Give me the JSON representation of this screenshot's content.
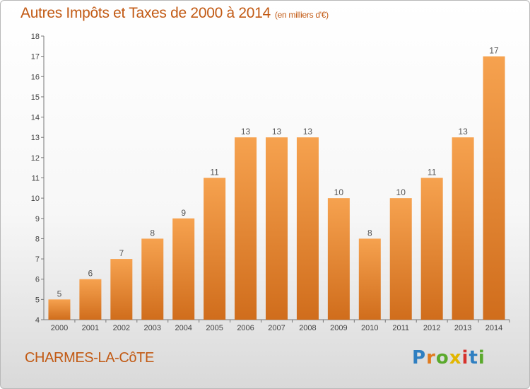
{
  "title": "Autres Impôts et Taxes de 2000 à 2014",
  "title_unit": "(en milliers d'€)",
  "place": "CHARMES-LA-CôTE",
  "logo": {
    "text": "Proxiti",
    "letters": [
      {
        "ch": "P",
        "color": "#2f7fc1"
      },
      {
        "ch": "r",
        "color": "#e07b1f"
      },
      {
        "ch": "o",
        "color": "#5aa92c"
      },
      {
        "ch": "x",
        "color": "#e2b600"
      },
      {
        "ch": "i",
        "color": "#d6312c"
      },
      {
        "ch": "t",
        "color": "#2f7fc1"
      },
      {
        "ch": "i",
        "color": "#5aa92c"
      }
    ]
  },
  "chart_data": {
    "type": "bar",
    "title": "Autres Impôts et Taxes de 2000 à 2014",
    "categories": [
      "2000",
      "2001",
      "2002",
      "2003",
      "2004",
      "2005",
      "2006",
      "2007",
      "2008",
      "2009",
      "2010",
      "2011",
      "2012",
      "2013",
      "2014"
    ],
    "values": [
      5,
      6,
      7,
      8,
      9,
      11,
      13,
      13,
      13,
      10,
      8,
      10,
      11,
      13,
      17
    ],
    "ylim": [
      4,
      18
    ],
    "yticks": [
      4,
      5,
      6,
      7,
      8,
      9,
      10,
      11,
      12,
      13,
      14,
      15,
      16,
      17,
      18
    ],
    "xlabel": "",
    "ylabel": "",
    "grid": false,
    "bar_color_top": "#f6a24f",
    "bar_color_bottom": "#d06d1c"
  }
}
